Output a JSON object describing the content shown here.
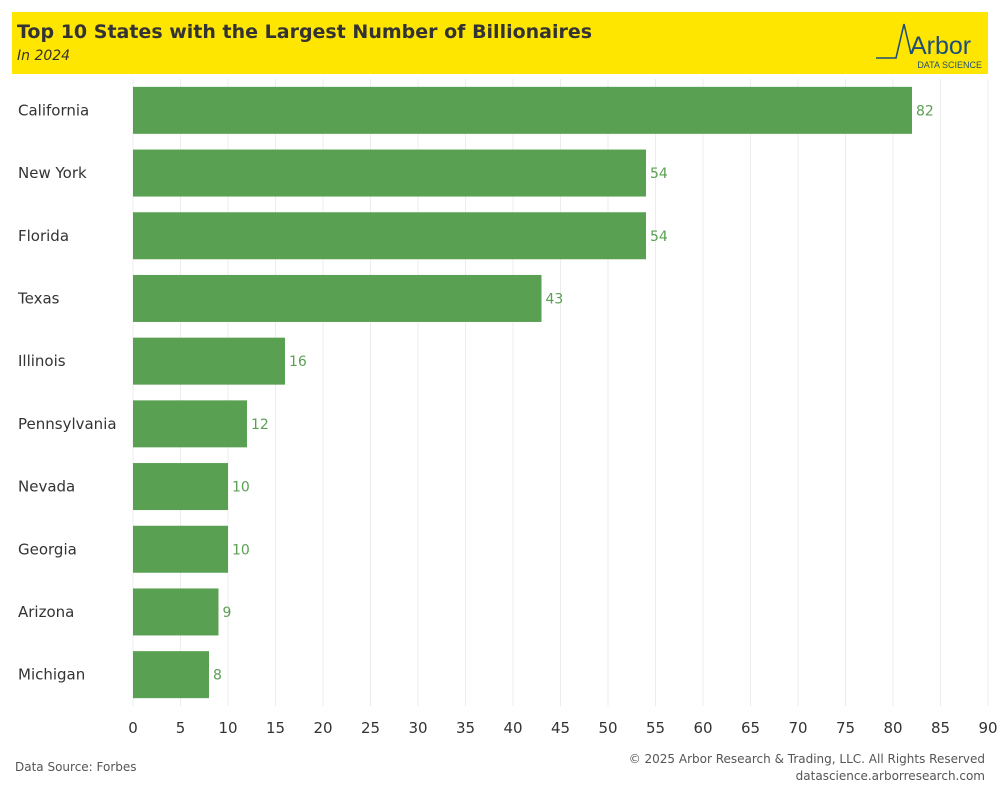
{
  "header": {
    "title": "Top 10 States with the Largest Number of Billionaires",
    "subtitle": "In 2024",
    "logo_text": "Arbor",
    "logo_subtext": "DATA SCIENCE",
    "background_color": "#ffe600"
  },
  "footer": {
    "source": "Data Source: Forbes",
    "copyright": "© 2025 Arbor Research & Trading, LLC. All Rights Reserved",
    "url": "datascience.arborresearch.com"
  },
  "colors": {
    "bar": "#5aa052",
    "label": "#5aa052",
    "grid": "#ececec",
    "text": "#333333",
    "logo": "#1e4d7a"
  },
  "chart_data": {
    "type": "bar",
    "orientation": "horizontal",
    "categories": [
      "California",
      "New York",
      "Florida",
      "Texas",
      "Illinois",
      "Pennsylvania",
      "Nevada",
      "Georgia",
      "Arizona",
      "Michigan"
    ],
    "values": [
      82,
      54,
      54,
      43,
      16,
      12,
      10,
      10,
      9,
      8
    ],
    "xlim": [
      0,
      90
    ],
    "xticks": [
      0,
      5,
      10,
      15,
      20,
      25,
      30,
      35,
      40,
      45,
      50,
      55,
      60,
      65,
      70,
      75,
      80,
      85,
      90
    ],
    "data_labels": true,
    "grid": true,
    "legend": "none"
  }
}
